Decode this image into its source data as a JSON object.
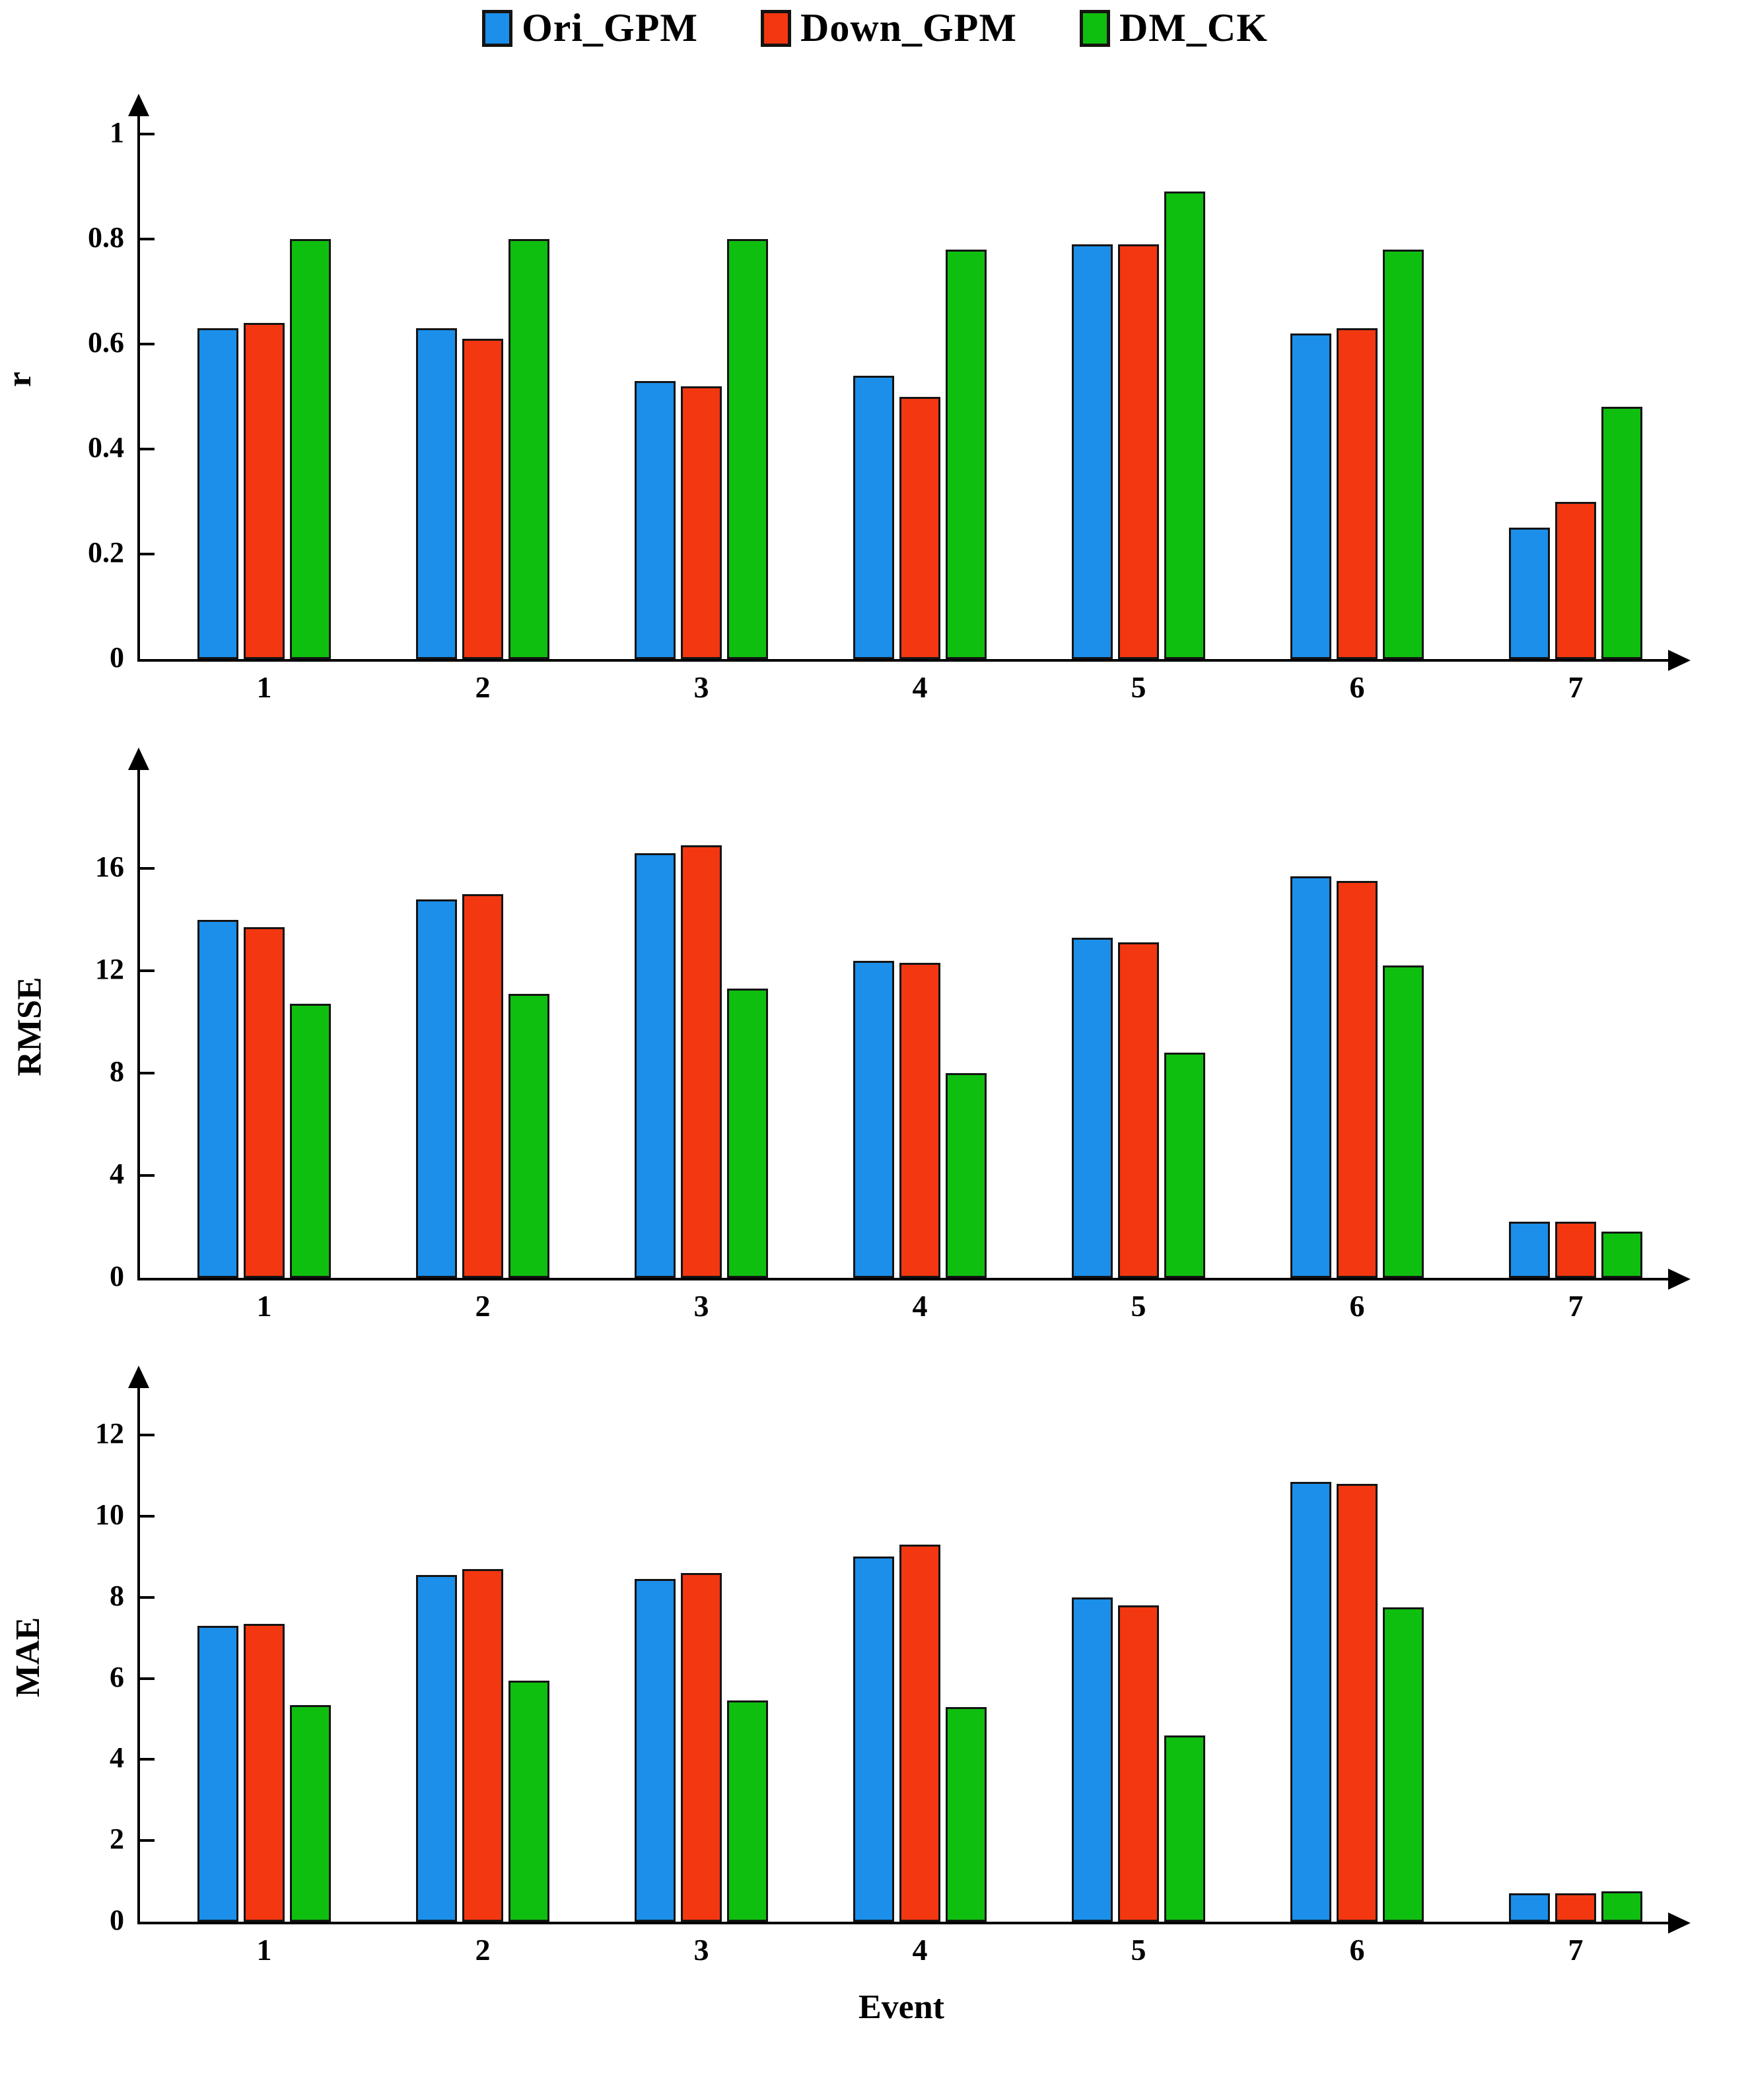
{
  "legend": {
    "items": [
      {
        "label": "Ori_GPM",
        "color": "#1B8FEA"
      },
      {
        "label": "Down_GPM",
        "color": "#F23711"
      },
      {
        "label": "DM_CK",
        "color": "#0FBF0F"
      }
    ]
  },
  "xlabel": "Event",
  "chart_data": [
    {
      "type": "bar",
      "ylabel": "r",
      "categories": [
        "1",
        "2",
        "3",
        "4",
        "5",
        "6",
        "7"
      ],
      "series": [
        {
          "name": "Ori_GPM",
          "values": [
            0.63,
            0.63,
            0.53,
            0.54,
            0.79,
            0.62,
            0.25
          ]
        },
        {
          "name": "Down_GPM",
          "values": [
            0.64,
            0.61,
            0.52,
            0.5,
            0.79,
            0.63,
            0.3
          ]
        },
        {
          "name": "DM_CK",
          "values": [
            0.8,
            0.8,
            0.8,
            0.78,
            0.89,
            0.78,
            0.48
          ]
        }
      ],
      "ylim": [
        0,
        1.08
      ],
      "grid": false,
      "legend_position": "top-center",
      "yticks": [
        {
          "v": 0,
          "label": "0"
        },
        {
          "v": 0.2,
          "label": "0.2"
        },
        {
          "v": 0.4,
          "label": "0.4"
        },
        {
          "v": 0.6,
          "label": "0.6"
        },
        {
          "v": 0.8,
          "label": "0.8"
        },
        {
          "v": 1,
          "label": "1"
        }
      ]
    },
    {
      "type": "bar",
      "ylabel": "RMSE",
      "categories": [
        "1",
        "2",
        "3",
        "4",
        "5",
        "6",
        "7"
      ],
      "series": [
        {
          "name": "Ori_GPM",
          "values": [
            14.0,
            14.8,
            16.6,
            12.4,
            13.3,
            15.7,
            2.2
          ]
        },
        {
          "name": "Down_GPM",
          "values": [
            13.7,
            15.0,
            16.9,
            12.3,
            13.1,
            15.5,
            2.2
          ]
        },
        {
          "name": "DM_CK",
          "values": [
            10.7,
            11.1,
            11.3,
            8.0,
            8.8,
            12.2,
            1.8
          ]
        }
      ],
      "ylim": [
        0,
        20
      ],
      "grid": false,
      "yticks": [
        {
          "v": 0,
          "label": "0"
        },
        {
          "v": 4,
          "label": "4"
        },
        {
          "v": 8,
          "label": "8"
        },
        {
          "v": 12,
          "label": "12"
        },
        {
          "v": 16,
          "label": "16"
        }
      ]
    },
    {
      "type": "bar",
      "ylabel": "MAE",
      "categories": [
        "1",
        "2",
        "3",
        "4",
        "5",
        "6",
        "7"
      ],
      "series": [
        {
          "name": "Ori_GPM",
          "values": [
            7.3,
            8.55,
            8.45,
            9.0,
            8.0,
            10.85,
            0.7
          ]
        },
        {
          "name": "Down_GPM",
          "values": [
            7.35,
            8.7,
            8.6,
            9.3,
            7.8,
            10.8,
            0.7
          ]
        },
        {
          "name": "DM_CK",
          "values": [
            5.35,
            5.95,
            5.45,
            5.3,
            4.6,
            7.75,
            0.75
          ]
        }
      ],
      "ylim": [
        0,
        13.2
      ],
      "grid": false,
      "yticks": [
        {
          "v": 0,
          "label": "0"
        },
        {
          "v": 2,
          "label": "2"
        },
        {
          "v": 4,
          "label": "4"
        },
        {
          "v": 6,
          "label": "6"
        },
        {
          "v": 8,
          "label": "8"
        },
        {
          "v": 10,
          "label": "10"
        },
        {
          "v": 12,
          "label": "12"
        }
      ]
    }
  ]
}
